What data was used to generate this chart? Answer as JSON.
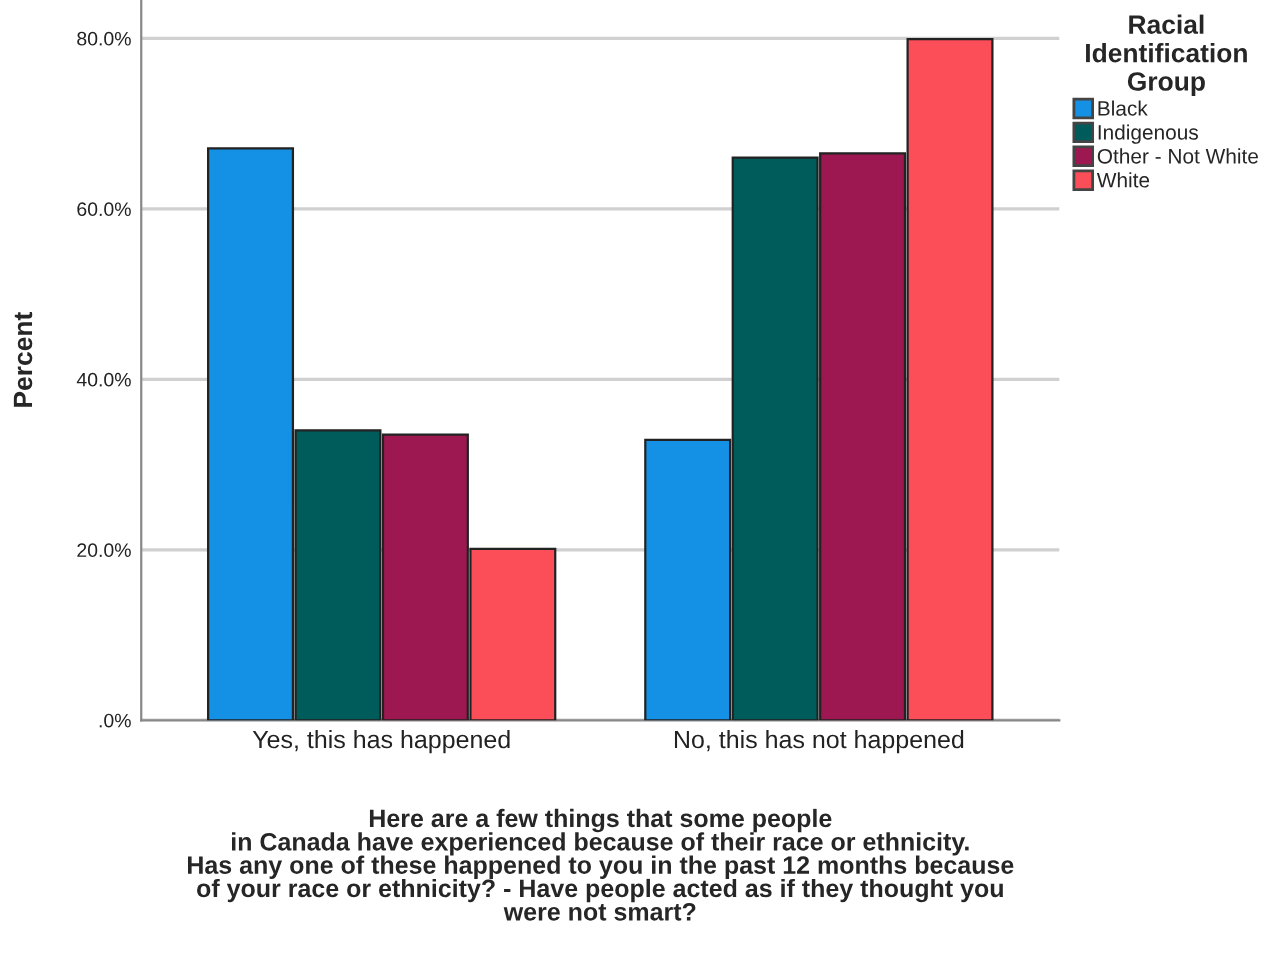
{
  "chart_data": {
    "type": "bar",
    "categories": [
      "Yes, this has happened",
      "No, this has not happened"
    ],
    "series": [
      {
        "name": "Black",
        "color": "#1490e4",
        "values": [
          67.1,
          32.9
        ]
      },
      {
        "name": "Indigenous",
        "color": "#005b5b",
        "values": [
          34.0,
          66.0
        ]
      },
      {
        "name": "Other - Not White",
        "color": "#9d1850",
        "values": [
          33.5,
          66.5
        ]
      },
      {
        "name": "White",
        "color": "#fc4e58",
        "values": [
          20.1,
          79.9
        ]
      }
    ],
    "xlabel": "Here are a few things that some people\nin Canada have experienced because of their race or ethnicity.\nHas any one of these happened to you in the past 12 months because\nof your race or ethnicity? - Have people acted as if they thought you\nwere not smart?",
    "ylabel": "Percent",
    "legend_title": "Racial\nIdentification\nGroup",
    "ylim": [
      0,
      84.5
    ],
    "yticks": [
      {
        "value": 0,
        "label": ".0%"
      },
      {
        "value": 20,
        "label": "20.0%"
      },
      {
        "value": 40,
        "label": "40.0%"
      },
      {
        "value": 60,
        "label": "60.0%"
      },
      {
        "value": 80,
        "label": "80.0%"
      }
    ],
    "grid": "y",
    "legend": "top right"
  }
}
